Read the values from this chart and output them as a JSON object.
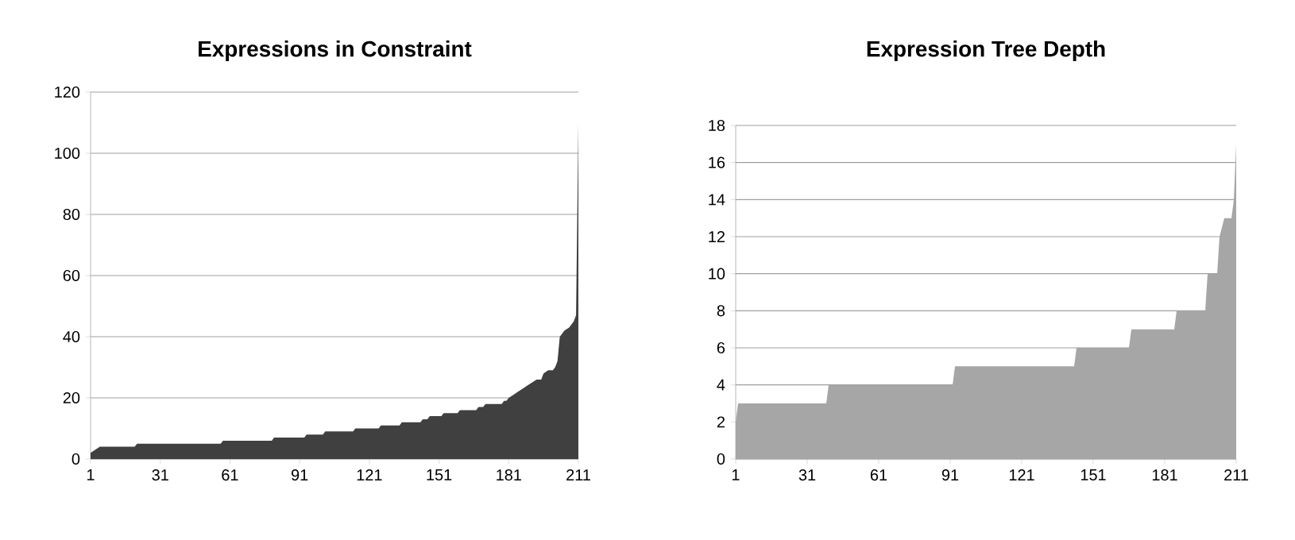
{
  "chart_data": [
    {
      "type": "area",
      "title": "Expressions in Constraint",
      "color": "#404040",
      "grid": "y",
      "xlim": [
        1,
        211
      ],
      "xticks": [
        1,
        31,
        61,
        91,
        121,
        151,
        181,
        211
      ],
      "ylim": [
        0,
        120
      ],
      "yticks": [
        0,
        20,
        40,
        60,
        80,
        100,
        120
      ],
      "x": [
        1,
        5,
        20,
        21,
        57,
        58,
        79,
        80,
        93,
        94,
        101,
        102,
        114,
        115,
        125,
        126,
        134,
        135,
        143,
        144,
        146,
        147,
        152,
        153,
        159,
        160,
        167,
        168,
        170,
        171,
        178,
        179,
        180,
        181,
        183,
        185,
        187,
        189,
        191,
        193,
        195,
        196,
        198,
        200,
        201,
        202,
        203,
        205,
        207,
        209,
        210,
        211
      ],
      "values": [
        2,
        4,
        4,
        5,
        5,
        6,
        6,
        7,
        7,
        8,
        8,
        9,
        9,
        10,
        10,
        11,
        11,
        12,
        12,
        13,
        13,
        14,
        14,
        15,
        15,
        16,
        16,
        17,
        17,
        18,
        18,
        19,
        19,
        20,
        21,
        22,
        23,
        24,
        25,
        26,
        26,
        28,
        29,
        29,
        30,
        32,
        40,
        42,
        43,
        45,
        47,
        110
      ]
    },
    {
      "type": "area",
      "title": "Expression Tree Depth",
      "color": "#a6a6a6",
      "grid": "y",
      "xlim": [
        1,
        211
      ],
      "xticks": [
        1,
        31,
        61,
        91,
        121,
        151,
        181,
        211
      ],
      "ylim": [
        0,
        18
      ],
      "yticks": [
        0,
        2,
        4,
        6,
        8,
        10,
        12,
        14,
        16,
        18
      ],
      "x": [
        1,
        2,
        39,
        40,
        92,
        93,
        143,
        144,
        166,
        167,
        185,
        186,
        198,
        199,
        203,
        204,
        206,
        207,
        209,
        210,
        211
      ],
      "values": [
        2,
        3,
        3,
        4,
        4,
        5,
        5,
        6,
        6,
        7,
        7,
        8,
        8,
        10,
        10,
        12,
        13,
        13,
        13,
        14,
        17
      ]
    }
  ]
}
